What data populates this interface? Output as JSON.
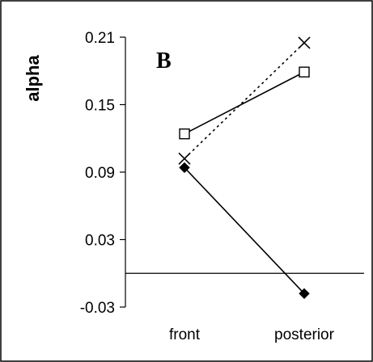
{
  "chart_data": {
    "type": "line",
    "panel_label": "B",
    "ylabel": "alpha",
    "categories": [
      "front",
      "posterior"
    ],
    "yticks": [
      -0.03,
      0.03,
      0.09,
      0.15,
      0.21
    ],
    "ytick_labels": [
      "-0.03",
      "0.03",
      "0.09",
      "0.15",
      "0.21"
    ],
    "ylim": [
      -0.03,
      0.21
    ],
    "reference_line": 0.0,
    "grid": false,
    "legend": "none",
    "series": [
      {
        "marker": "square",
        "line_style": "solid",
        "color": "#000000",
        "values": [
          0.124,
          0.179
        ]
      },
      {
        "marker": "x",
        "line_style": "dotted",
        "color": "#000000",
        "values": [
          0.102,
          0.205
        ]
      },
      {
        "marker": "diamond",
        "line_style": "solid",
        "color": "#000000",
        "values": [
          0.094,
          -0.018
        ]
      }
    ]
  }
}
